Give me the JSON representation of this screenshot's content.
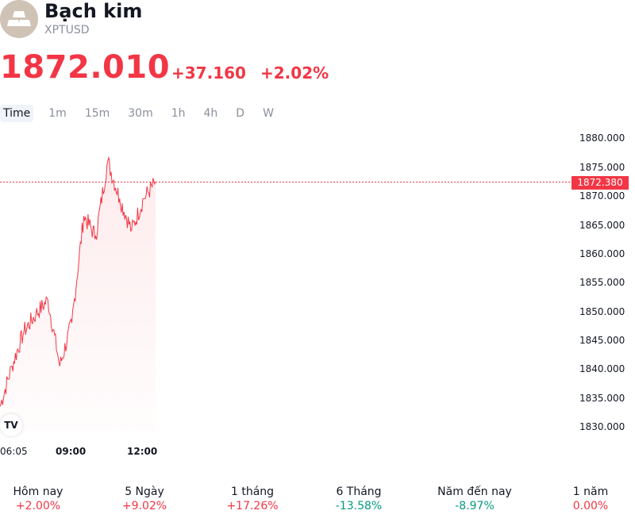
{
  "header": {
    "icon": "gold-bars-icon",
    "name": "Bạch kim",
    "ticker": "XPTUSD",
    "price": "1872.010",
    "change_abs": "+37.160",
    "change_pct": "+2.02%",
    "accent_red": "#f23645",
    "accent_green": "#089981"
  },
  "tabs": [
    {
      "label": "Time",
      "active": true
    },
    {
      "label": "1m"
    },
    {
      "label": "15m"
    },
    {
      "label": "30m"
    },
    {
      "label": "1h"
    },
    {
      "label": "4h"
    },
    {
      "label": "D"
    },
    {
      "label": "W"
    }
  ],
  "chart": {
    "y_axis_labels": [
      "1880.000",
      "1875.000",
      "1870.000",
      "1865.000",
      "1860.000",
      "1855.000",
      "1850.000",
      "1845.000",
      "1840.000",
      "1835.000",
      "1830.000"
    ],
    "current_price_label": "1872.380",
    "x_axis_labels": [
      "06:05",
      "09:00",
      "12:00"
    ],
    "badge": "TV"
  },
  "chart_data": {
    "type": "area",
    "x": [
      "06:05",
      "06:30",
      "07:00",
      "07:30",
      "08:00",
      "08:30",
      "09:00",
      "09:30",
      "10:00",
      "10:30",
      "11:00",
      "11:30",
      "12:00",
      "12:15"
    ],
    "values": [
      1833.5,
      1840.5,
      1846.5,
      1849.5,
      1852.0,
      1840.5,
      1848.0,
      1866.5,
      1863.0,
      1876.0,
      1869.5,
      1864.0,
      1869.5,
      1872.4
    ],
    "ylim": [
      1830,
      1880
    ],
    "current": 1872.38,
    "color": "#f23645"
  },
  "performance": [
    {
      "label": "Hôm nay",
      "value": "+2.00%",
      "color": "#f23645"
    },
    {
      "label": "5 Ngày",
      "value": "+9.02%",
      "color": "#f23645"
    },
    {
      "label": "1 tháng",
      "value": "+17.26%",
      "color": "#f23645"
    },
    {
      "label": "6 Tháng",
      "value": "-13.58%",
      "color": "#089981"
    },
    {
      "label": "Năm đến nay",
      "value": "-8.97%",
      "color": "#089981"
    },
    {
      "label": "1 năm",
      "value": "0.00%",
      "color": "#f23645"
    }
  ]
}
